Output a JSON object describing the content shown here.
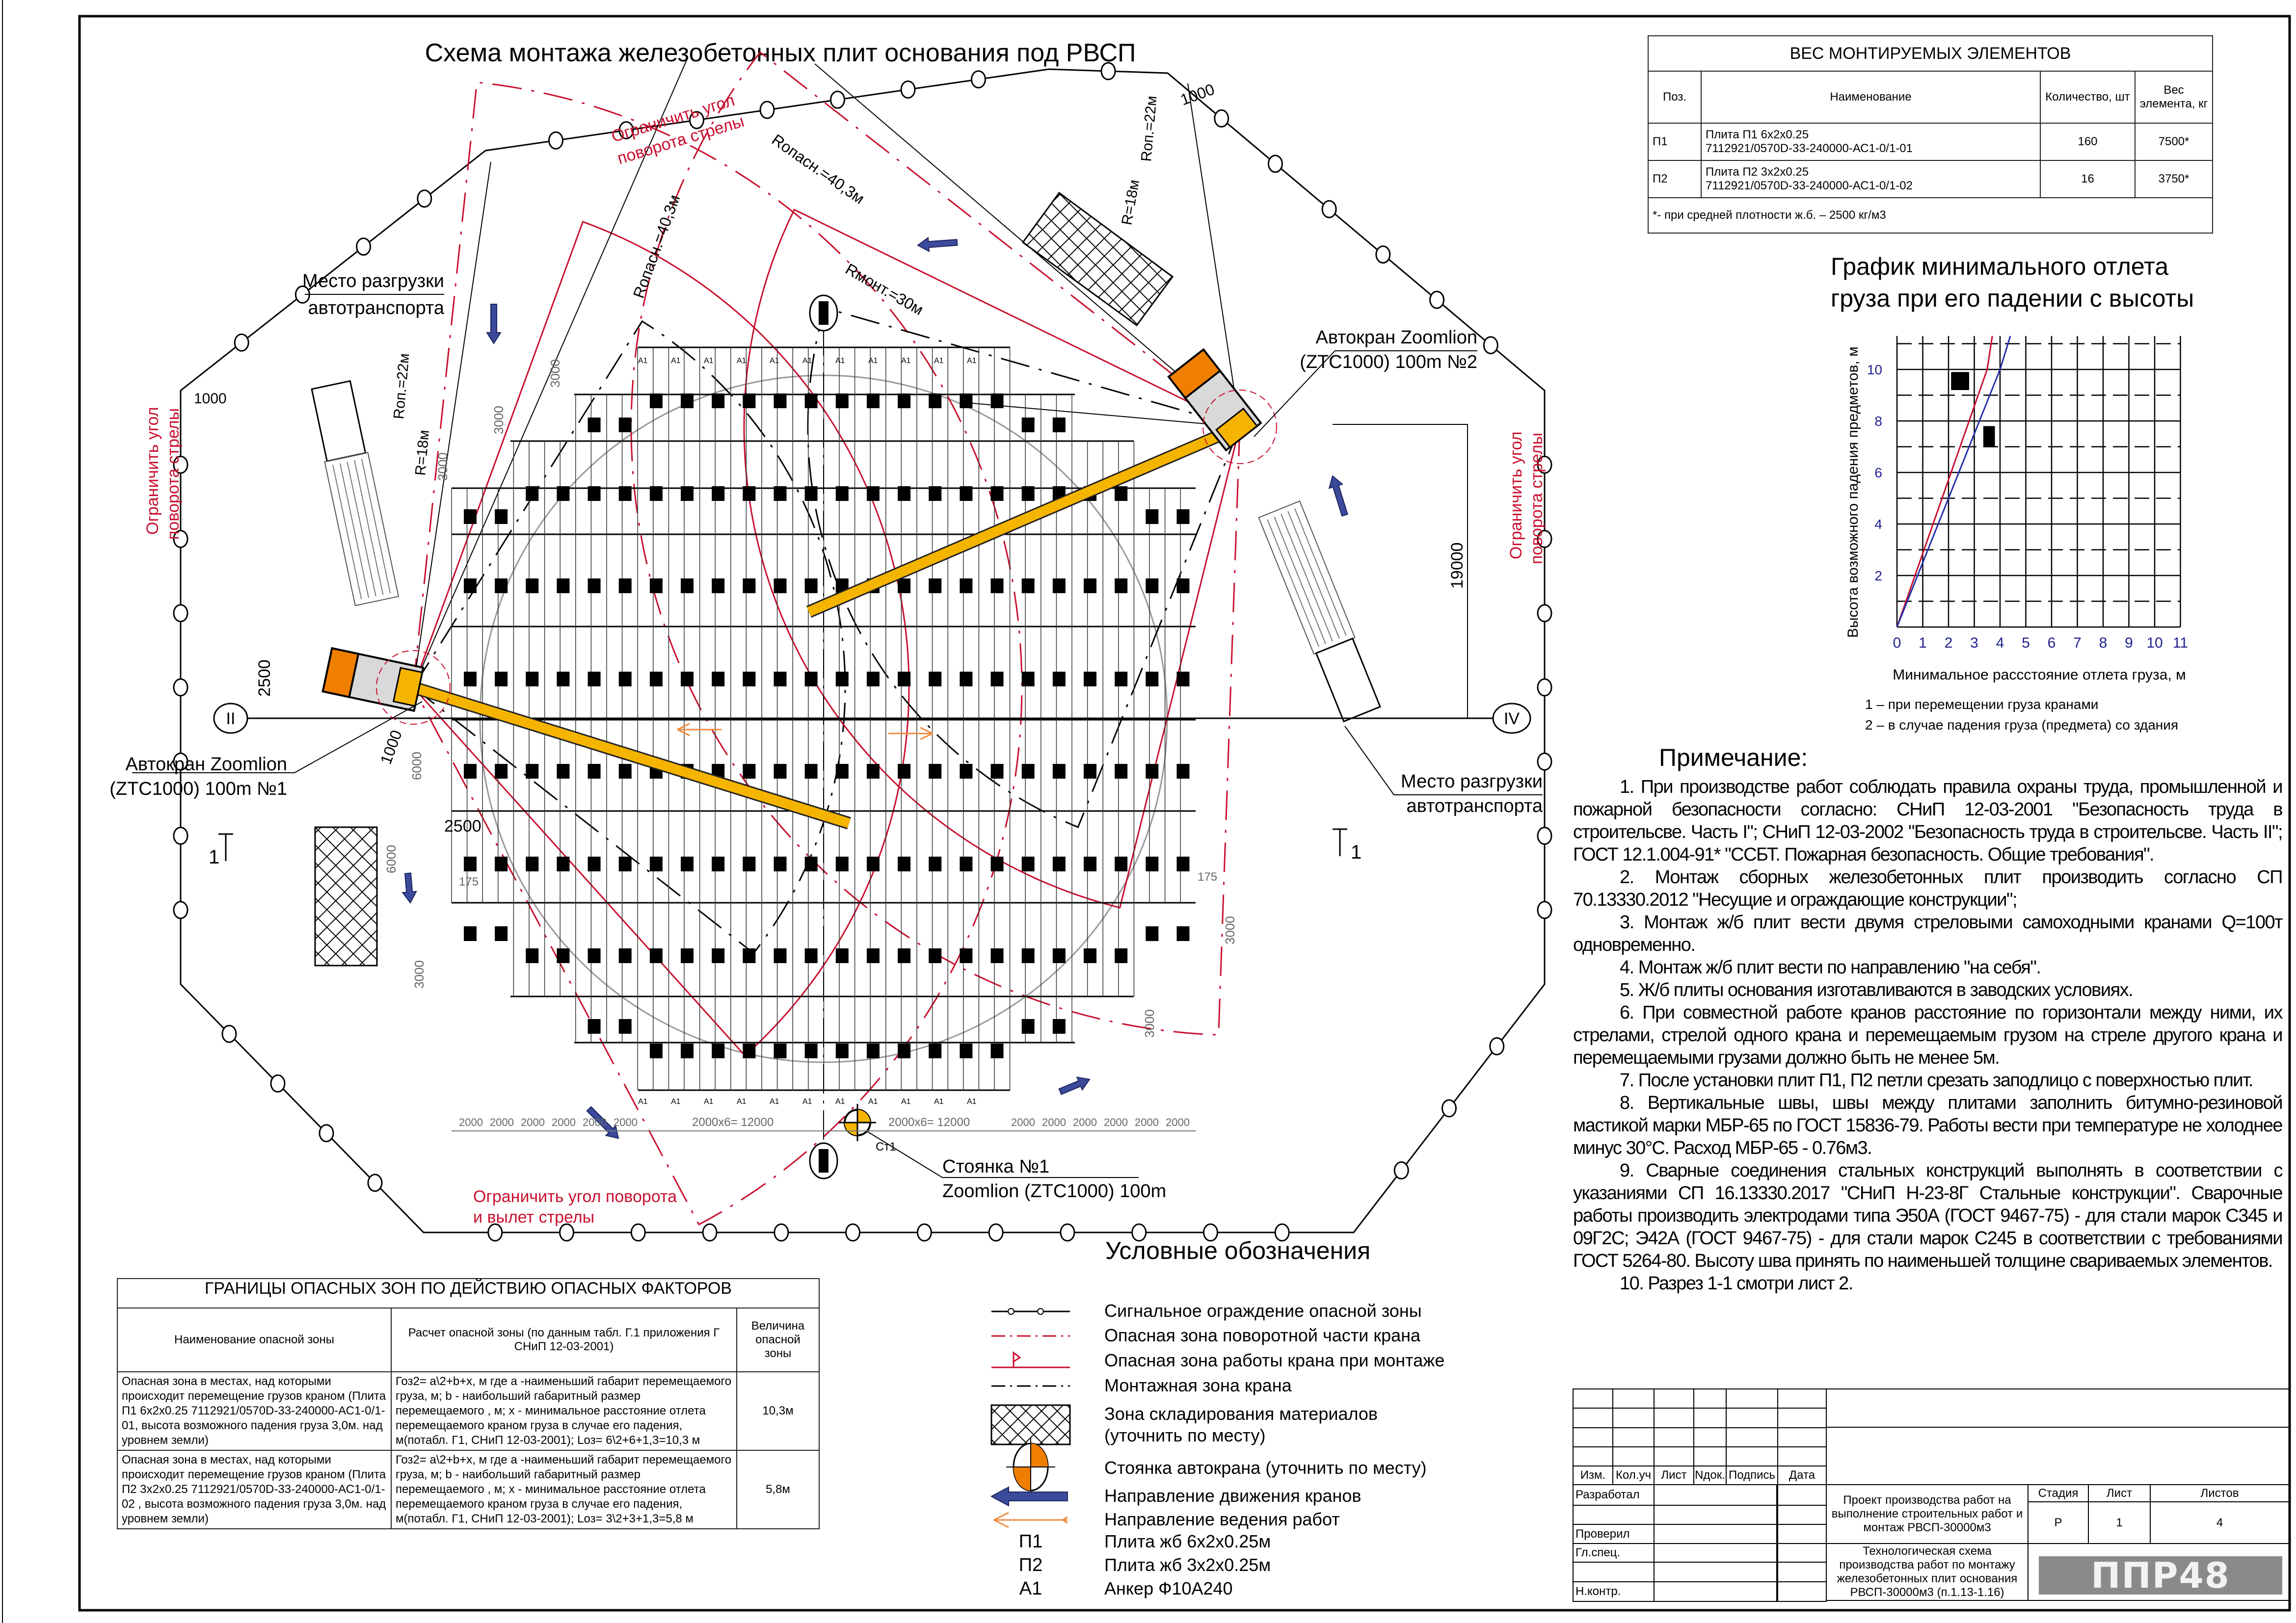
{
  "plan": {
    "title": "Схема монтажа железобетонных плит основания под РВСП",
    "labels": [
      "Место разгрузки",
      "автотранспорта",
      "Ограничить угол",
      "поворота стрелы",
      "Rопасн.=40,3м",
      "Rопасн.=40,3м",
      "Rмонт.=30м",
      "Rоп.=22м",
      "R=18м",
      "1000",
      "Автокран Zoomlion",
      "(ZTC1000) 100m №2",
      "1000",
      "Ограничить угол",
      "поворота стрелы",
      "Rоп.=22м",
      "R=18м",
      "2500",
      "1000",
      "Автокран Zoomlion",
      "(ZTC1000) 100m №1",
      "2500",
      "6000",
      "6000",
      "175",
      "175",
      "1",
      "1",
      "19000",
      "Ограничить угол",
      "поворота стрелы",
      "Место разгрузки",
      "автотранспорта",
      "Стоянка №1",
      "Zoomlion (ZTC1000) 100m",
      "Ограничить угол поворота",
      "и вылет стрелы",
      "3000",
      "3000",
      "3000",
      "3000",
      "3000",
      "3000",
      "Ст1"
    ],
    "axes": [
      "I",
      "II",
      "IV",
      "I"
    ],
    "anchor_label": "А1",
    "bottom_dims_left": [
      "2000",
      "2000",
      "2000",
      "2000",
      "2000",
      "2000"
    ],
    "bottom_dims_mid": [
      "2000x6= 12000",
      "2000x6= 12000"
    ],
    "bottom_dims_right": [
      "2000",
      "2000",
      "2000",
      "2000",
      "2000",
      "2000"
    ]
  },
  "weights_table": {
    "title": "ВЕС МОНТИРУЕМЫХ ЭЛЕМЕНТОВ",
    "headers": [
      "Поз.",
      "Наименование",
      "Количество, шт",
      "Вес элемента, кг"
    ],
    "rows": [
      {
        "pos": "П1",
        "name1": "Плита П1 6х2х0.25",
        "name2": "7112921/0570D-33-240000-АС1-0/1-01",
        "qty": "160",
        "weight": "7500*"
      },
      {
        "pos": "П2",
        "name1": "Плита П2 3х2х0.25",
        "name2": "7112921/0570D-33-240000-АС1-0/1-02",
        "qty": "16",
        "weight": "3750*"
      }
    ],
    "footnote": "*- при средней плотности ж.б. – 2500 кг/м3"
  },
  "chart_data": {
    "type": "line",
    "title": "График минимального отлета груза при его падении с высоты",
    "title_lines": [
      "График минимального отлета",
      "груза при его падении с высоты"
    ],
    "xlabel": "Минимальное рассстояние отлета груза, м",
    "ylabel": "Высота возможного падения предметов, м",
    "xlim": [
      0,
      11
    ],
    "ylim": [
      0,
      11.3
    ],
    "x_ticks": [
      "0",
      "1",
      "2",
      "3",
      "4",
      "5",
      "6",
      "7",
      "8",
      "9",
      "10",
      "11"
    ],
    "y_ticks": [
      "2",
      "4",
      "6",
      "8",
      "10"
    ],
    "grid": true,
    "series": [
      {
        "color": "#c8102e",
        "points": [
          [
            0,
            0
          ],
          [
            3.5,
            10
          ],
          [
            3.7,
            11.3
          ]
        ]
      },
      {
        "color": "#1f2fa8",
        "points": [
          [
            0,
            0
          ],
          [
            4.0,
            10
          ],
          [
            4.4,
            11.3
          ]
        ]
      }
    ],
    "markers": [
      {
        "x0": 2.1,
        "x1": 2.8,
        "y0": 9.2,
        "y1": 9.9
      },
      {
        "x0": 3.35,
        "x1": 3.8,
        "y0": 7.0,
        "y1": 7.8
      }
    ],
    "legend_notes": [
      "1 – при перемещении груза кранами",
      "2 – в случае падения груза (предмета) со здания"
    ],
    "tick_color": "#1f1f8f"
  },
  "notes": {
    "title": "Примечание:",
    "items": [
      "1.   При производстве работ соблюдать правила охраны труда, промышленной и пожарной безопасности согласно: СНиП 12-03-2001 \"Безопасность труда в строительсве. Часть I\"; СНиП 12-03-2002 \"Безопасность труда в строительсве. Часть II\"; ГОСТ 12.1.004-91* \"ССБТ. Пожарная безопасность. Общие требования\".",
      "2.   Монтаж сборных железобетонных плит производить согласно СП 70.13330.2012 \"Несущие и ограждающие конструкции\";",
      "3.   Монтаж ж/б плит вести двумя стреловыми самоходными кранами Q=100т одновременно.",
      "4.   Монтаж ж/б плит вести по направлению \"на себя\".",
      "5.   Ж/б плиты основания изготавливаются в заводских условиях.",
      "6.   При совместной работе кранов расстояние по горизонтали между ними, их стрелами, стрелой одного крана и перемещаемым грузом на стреле другого крана и перемещаемыми грузами должно быть не менее 5м.",
      "7.   После установки плит П1, П2 петли срезать заподлицо с поверхностью плит.",
      "8.   Вертикальные швы, швы между плитами заполнить битумно-резиновой мастикой марки МБР-65 по ГОСТ 15836-79. Работы вести при температуре не холоднее минус 30°С. Расход МБР-65 - 0.76м3.",
      "9.   Сварные соединения стальных конструкций выполнять в соответствии с указаниями СП 16.13330.2017 \"СНиП Н-23-8Г Стальные конструкции\". Сварочные работы производить электродами типа Э50А (ГОСТ 9467-75) - для стали марок С345 и 09Г2С; Э42А (ГОСТ 9467-75) - для стали марок С245 в соответствии с требованиями ГОСТ 5264-80. Высоту шва принять по наименьшей толщине свариваемых элементов.",
      "10.   Разрез 1-1 смотри лист 2."
    ]
  },
  "hazard_table": {
    "title": "ГРАНИЦЫ ОПАСНЫХ ЗОН ПО ДЕЙСТВИЮ ОПАСНЫХ ФАКТОРОВ",
    "headers": [
      "Наименование опасной зоны",
      "Расчет опасной зоны (по данным табл. Г.1 приложения Г СНиП 12-03-2001)",
      "Величина опасной зоны"
    ],
    "rows": [
      {
        "name": "Опасная зона в местах, над которыми происходит перемещение грузов краном (Плита П1 6х2х0.25 7112921/0570D-33-240000-АС1-0/1-01, высота возможного падения груза 3,0м. над уровнем земли)",
        "calc": "Гоз2= а\\2+b+х, м где а -наименьший габарит перемещаемого груза, м; b - наибольший габаритный размер перемещаемого , м; х - минимальное расстояние отлета перемещаемого краном груза в случае его падения, м(потабл. Г1, СНиП 12-03-2001); Lоз= 6\\2+6+1,3=10,3 м",
        "value": "10,3м"
      },
      {
        "name": "Опасная зона в местах, над которыми происходит перемещение грузов краном (Плита П2 3х2х0.25 7112921/0570D-33-240000-АС1-0/1-02 , высота возможного падения груза 3,0м. над уровнем земли)",
        "calc": "Гоз2= а\\2+b+х, м где а -наименьший габарит перемещаемого груза, м; b - наибольший габаритный размер перемещаемого , м; х - минимальное расстояние отлета перемещаемого краном груза в случае его падения, м(потабл. Г1, СНиП 12-03-2001); Lоз= 3\\2+3+1,3=5,8 м",
        "value": "5,8м"
      }
    ]
  },
  "legend": {
    "title": "Условные обозначения",
    "items": [
      {
        "symbol": "signal-fence",
        "label": "Сигнальное ограждение опасной зоны"
      },
      {
        "symbol": "red-dash-dot",
        "label": "Опасная зона поворотной части крана"
      },
      {
        "symbol": "red-flag-line",
        "label": "Опасная зона работы крана при монтаже"
      },
      {
        "symbol": "black-dash-dot",
        "label": "Монтажная зона крана"
      },
      {
        "symbol": "crosshatch",
        "label": "Зона складирования материалов (уточнить по месту)"
      },
      {
        "symbol": "crane-parking",
        "label": "Стоянка автокрана (уточнить по месту)"
      },
      {
        "symbol": "blue-arrow",
        "label": "Направление движения кранов"
      },
      {
        "symbol": "orange-arrow",
        "label": "Направление ведения работ"
      },
      {
        "symbol": "П1",
        "label": "Плита жб 6х2х0.25м"
      },
      {
        "symbol": "П2",
        "label": "Плита жб 3х2х0.25м"
      },
      {
        "symbol": "А1",
        "label": "Анкер Ф10А240"
      }
    ]
  },
  "title_block": {
    "col_headers": [
      "Изм.",
      "Кол.уч",
      "Лист",
      "Nдок.",
      "Подпись",
      "Дата"
    ],
    "roles": [
      "Разработал",
      "",
      "Проверил",
      "Гл.спец.",
      "",
      "Н.контр."
    ],
    "project": "Проект производства работ на выполнение строительных работ и монтаж РВСП-30000м3",
    "sheet_title": "Технологическая схема производства работ по монтажу железобетонных плит основания РВСП-30000м3 (п.1.13-1.16)",
    "stage_label": "Стадия",
    "sheet_label": "Лист",
    "sheets_label": "Листов",
    "stage": "Р",
    "sheet": "1",
    "sheets": "4",
    "logo": "ППР48"
  },
  "colors": {
    "danger_red": "#c8102e",
    "boom_yellow": "#f5b400",
    "cab_orange": "#f07f00",
    "arrow_blue": "#3b4a9a",
    "arrow_orange": "#f08a40"
  }
}
